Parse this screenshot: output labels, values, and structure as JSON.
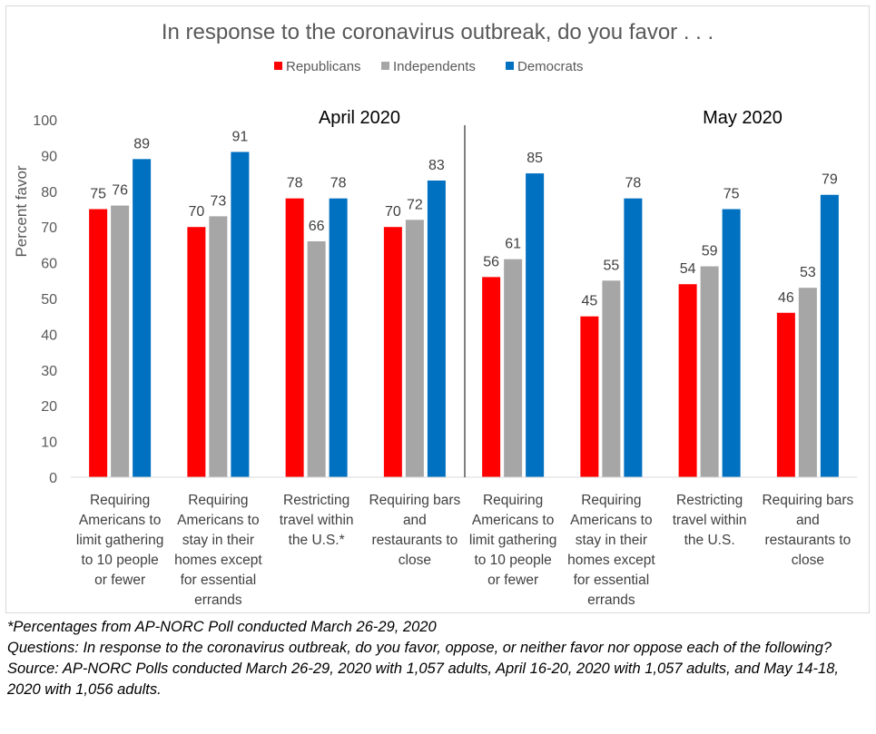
{
  "chart_data": {
    "type": "bar",
    "title": "In response to the coronavirus outbreak, do you favor . . .",
    "ylabel": "Percent favor",
    "ylim": [
      0,
      100
    ],
    "yticks": [
      0,
      10,
      20,
      30,
      40,
      50,
      60,
      70,
      80,
      90,
      100
    ],
    "grid": false,
    "legend_position": "top",
    "groups": [
      "April 2020",
      "May 2020"
    ],
    "categories": [
      {
        "group": 0,
        "lines": [
          "Requiring",
          "Americans to",
          "limit gathering",
          "to 10 people",
          "or fewer"
        ]
      },
      {
        "group": 0,
        "lines": [
          "Requiring",
          "Americans to",
          "stay in their",
          "homes except",
          "for essential",
          "errands"
        ]
      },
      {
        "group": 0,
        "lines": [
          "Restricting",
          "travel within",
          "the U.S.*"
        ]
      },
      {
        "group": 0,
        "lines": [
          "Requiring bars",
          "and",
          "restaurants to",
          "close"
        ]
      },
      {
        "group": 1,
        "lines": [
          "Requiring",
          "Americans to",
          "limit gathering",
          "to 10 people",
          "or fewer"
        ]
      },
      {
        "group": 1,
        "lines": [
          "Requiring",
          "Americans to",
          "stay in their",
          "homes except",
          "for essential",
          "errands"
        ]
      },
      {
        "group": 1,
        "lines": [
          "Restricting",
          "travel within",
          "the U.S."
        ]
      },
      {
        "group": 1,
        "lines": [
          "Requiring bars",
          "and",
          "restaurants to",
          "close"
        ]
      }
    ],
    "series": [
      {
        "name": "Republicans",
        "color": "#ff0000",
        "values": [
          75,
          70,
          78,
          70,
          56,
          45,
          54,
          46
        ]
      },
      {
        "name": "Independents",
        "color": "#a6a6a6",
        "values": [
          76,
          73,
          66,
          72,
          61,
          55,
          59,
          53
        ]
      },
      {
        "name": "Democrats",
        "color": "#0070c0",
        "values": [
          89,
          91,
          78,
          83,
          85,
          78,
          75,
          79
        ]
      }
    ]
  },
  "notes": {
    "footnote": "*Percentages from AP-NORC Poll conducted March 26-29, 2020",
    "question": "Questions: In response to the coronavirus outbreak, do you favor, oppose, or neither favor nor oppose each of the following?",
    "source": "Source: AP-NORC Polls conducted March 26-29, 2020 with 1,057 adults, April 16-20, 2020 with 1,057 adults, and May 14-18, 2020 with 1,056 adults."
  }
}
